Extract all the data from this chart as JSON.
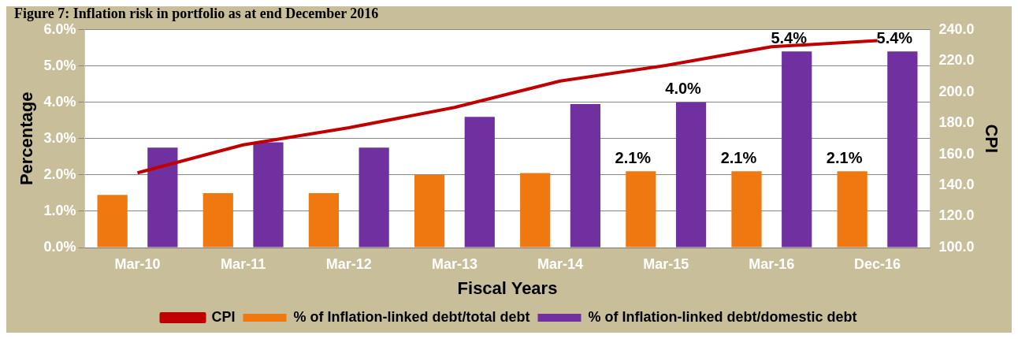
{
  "chart_data": {
    "type": "bar",
    "title": "Figure 7: Inflation risk in portfolio as at end December 2016",
    "xlabel": "Fiscal Years",
    "ylabel": "Percentage",
    "y2label": "CPI",
    "categories": [
      "Mar-10",
      "Mar-11",
      "Mar-12",
      "Mar-13",
      "Mar-14",
      "Mar-15",
      "Mar-16",
      "Dec-16"
    ],
    "series": [
      {
        "name": "% of Inflation-linked debt/total debt",
        "color": "#f07810",
        "values": [
          1.45,
          1.5,
          1.5,
          2.0,
          2.05,
          2.1,
          2.1,
          2.1
        ],
        "value_labels": [
          null,
          null,
          null,
          null,
          null,
          "2.1%",
          "2.1%",
          "2.1%"
        ]
      },
      {
        "name": "% of Inflation-linked debt/domestic debt",
        "color": "#7030a0",
        "values": [
          2.75,
          2.9,
          2.75,
          3.6,
          3.95,
          4.0,
          5.4,
          5.4
        ],
        "value_labels": [
          null,
          null,
          null,
          null,
          null,
          "4.0%",
          "5.4%",
          "5.4%"
        ]
      },
      {
        "name": "CPI",
        "type": "line",
        "axis": "y2",
        "color": "#c00000",
        "values": [
          148,
          166,
          177,
          190,
          207,
          217,
          229,
          233
        ]
      }
    ],
    "ylim": [
      0,
      6
    ],
    "yticks": [
      {
        "value": 0,
        "label": "0.0%"
      },
      {
        "value": 1,
        "label": "1.0%"
      },
      {
        "value": 2,
        "label": "2.0%"
      },
      {
        "value": 3,
        "label": "3.0%"
      },
      {
        "value": 4,
        "label": "4.0%"
      },
      {
        "value": 5,
        "label": "5.0%"
      },
      {
        "value": 6,
        "label": "6.0%"
      }
    ],
    "y2lim": [
      100,
      240
    ],
    "y2ticks": [
      {
        "value": 100,
        "label": "100.0"
      },
      {
        "value": 120,
        "label": "120.0"
      },
      {
        "value": 140,
        "label": "140.0"
      },
      {
        "value": 160,
        "label": "160.0"
      },
      {
        "value": 180,
        "label": "180.0"
      },
      {
        "value": 200,
        "label": "200.0"
      },
      {
        "value": 220,
        "label": "220.0"
      },
      {
        "value": 240,
        "label": "240.0"
      }
    ],
    "grid": "y",
    "legend": "bottom",
    "marker": "none"
  }
}
